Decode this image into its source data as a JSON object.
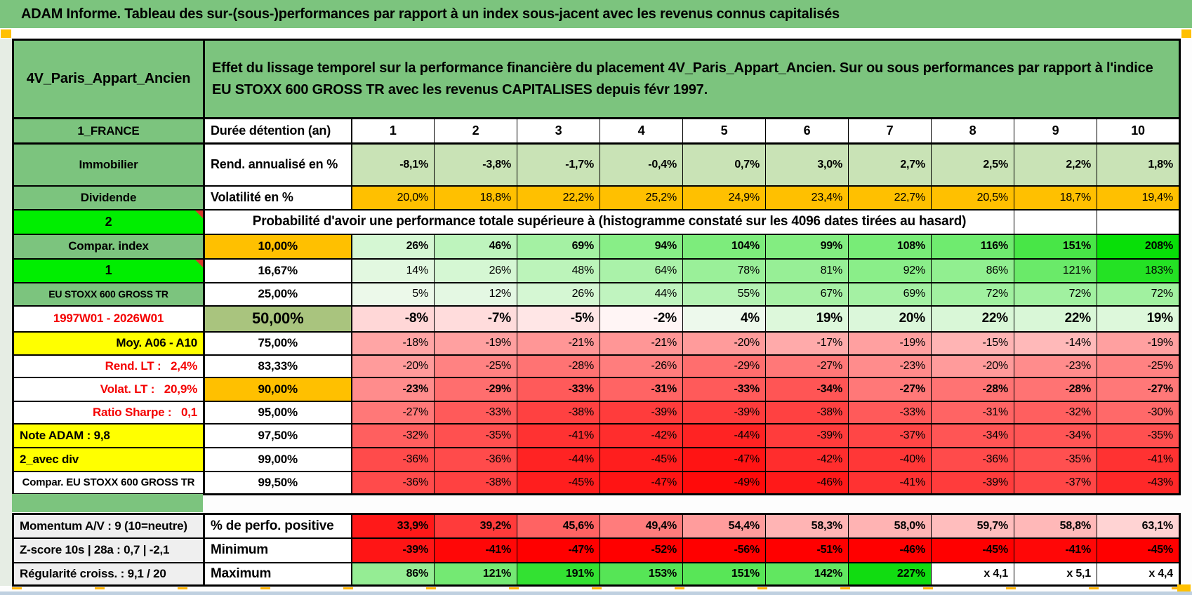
{
  "title": "ADAM Informe. Tableau des sur-(sous-)performances par rapport à un index sous-jacent avec les revenus connus capitalisés",
  "header": {
    "placement": "4V_Paris_Appart_Ancien",
    "description": "Effet du lissage temporel sur la performance financière du placement 4V_Paris_Appart_Ancien. Sur ou sous performances par rapport à l'indice EU STOXX 600 GROSS TR avec les revenus CAPITALISES depuis févr 1997."
  },
  "probability_note": "Probabilité d'avoir une performance totale supérieure à (histogramme constaté sur les 4096 dates tirées au hasard)",
  "main_rows": [
    {
      "label": "1_FRANCE",
      "label_style": "green",
      "sub": "Durée détention (an)",
      "sub_style": "left",
      "type": "years",
      "values": [
        "1",
        "2",
        "3",
        "4",
        "5",
        "6",
        "7",
        "8",
        "9",
        "10"
      ]
    },
    {
      "label": "Immobilier",
      "label_style": "green",
      "sub": "Rend. annualisé en %",
      "sub_style": "left",
      "type": "flat",
      "bg": "#C9E3B6",
      "bold": true,
      "values": [
        "-8,1%",
        "-3,8%",
        "-1,7%",
        "-0,4%",
        "0,7%",
        "3,0%",
        "2,7%",
        "2,5%",
        "2,2%",
        "1,8%"
      ]
    },
    {
      "label": "Dividende",
      "label_style": "green",
      "sub": "Volatilité en %",
      "sub_style": "left",
      "type": "flat",
      "bg": "#FFC000",
      "bold": false,
      "values": [
        "20,0%",
        "18,8%",
        "22,2%",
        "25,2%",
        "24,9%",
        "23,4%",
        "22,7%",
        "20,5%",
        "18,7%",
        "19,4%"
      ]
    },
    {
      "label": "2",
      "label_style": "bright",
      "type": "note"
    },
    {
      "label": "Compar. index",
      "label_style": "green",
      "sub": "10,00%",
      "sub_style": "orange",
      "type": "heat",
      "bold": true,
      "values": [
        "26%",
        "46%",
        "69%",
        "94%",
        "104%",
        "99%",
        "108%",
        "116%",
        "151%",
        "208%"
      ]
    },
    {
      "label": "1",
      "label_style": "bright",
      "sub": "16,67%",
      "type": "heat",
      "bold": false,
      "values": [
        "14%",
        "26%",
        "48%",
        "64%",
        "78%",
        "81%",
        "92%",
        "86%",
        "121%",
        "183%"
      ]
    },
    {
      "label": "EU STOXX 600 GROSS TR",
      "label_style": "green-small",
      "sub": "25,00%",
      "type": "heat",
      "bold": false,
      "values": [
        "5%",
        "12%",
        "26%",
        "44%",
        "55%",
        "67%",
        "69%",
        "72%",
        "72%",
        "72%"
      ]
    },
    {
      "label": "1997W01 - 2026W01",
      "label_style": "red",
      "sub": "50,00%",
      "sub_style": "olive",
      "type": "heat",
      "bold": true,
      "big": true,
      "values": [
        "-8%",
        "-7%",
        "-5%",
        "-2%",
        "4%",
        "19%",
        "20%",
        "22%",
        "22%",
        "19%"
      ]
    },
    {
      "label": "Moy. A06 - A10",
      "label_style": "yellow-right",
      "sub": "75,00%",
      "type": "heat",
      "bold": false,
      "values": [
        "-18%",
        "-19%",
        "-21%",
        "-21%",
        "-20%",
        "-17%",
        "-19%",
        "-15%",
        "-14%",
        "-19%"
      ]
    },
    {
      "label": "Rend. LT :   2,4%",
      "label_style": "red-right",
      "sub": "83,33%",
      "type": "heat",
      "bold": false,
      "values": [
        "-20%",
        "-25%",
        "-28%",
        "-26%",
        "-29%",
        "-27%",
        "-23%",
        "-20%",
        "-23%",
        "-25%"
      ]
    },
    {
      "label": "Volat. LT :   20,9%",
      "label_style": "red-right",
      "sub": "90,00%",
      "sub_style": "orange",
      "type": "heat",
      "bold": true,
      "values": [
        "-23%",
        "-29%",
        "-33%",
        "-31%",
        "-33%",
        "-34%",
        "-27%",
        "-28%",
        "-28%",
        "-27%"
      ]
    },
    {
      "label": "Ratio Sharpe :   0,1",
      "label_style": "red-right",
      "sub": "95,00%",
      "type": "heat",
      "bold": false,
      "values": [
        "-27%",
        "-33%",
        "-38%",
        "-39%",
        "-39%",
        "-38%",
        "-33%",
        "-31%",
        "-32%",
        "-30%"
      ]
    },
    {
      "label": "Note ADAM : 9,8",
      "label_style": "yellow-left",
      "sub": "97,50%",
      "type": "heat",
      "bold": false,
      "values": [
        "-32%",
        "-35%",
        "-41%",
        "-42%",
        "-44%",
        "-39%",
        "-37%",
        "-34%",
        "-34%",
        "-35%"
      ]
    },
    {
      "label": "2_avec div",
      "label_style": "yellow-left",
      "sub": "99,00%",
      "type": "heat",
      "bold": false,
      "values": [
        "-36%",
        "-36%",
        "-44%",
        "-45%",
        "-47%",
        "-42%",
        "-40%",
        "-36%",
        "-35%",
        "-41%"
      ]
    },
    {
      "label": "Compar. EU STOXX 600 GROSS TR",
      "label_style": "white-small",
      "sub": "99,50%",
      "type": "heat",
      "bold": false,
      "values": [
        "-36%",
        "-38%",
        "-45%",
        "-47%",
        "-49%",
        "-46%",
        "-41%",
        "-39%",
        "-37%",
        "-43%"
      ]
    }
  ],
  "bottom_rows": [
    {
      "label": "Momentum A/V : 9 (10=neutre)",
      "sub": "% de perfo. positive",
      "type": "posred",
      "values": [
        "33,9%",
        "39,2%",
        "45,6%",
        "49,4%",
        "54,4%",
        "58,3%",
        "58,0%",
        "59,7%",
        "58,8%",
        "63,1%"
      ]
    },
    {
      "label": "Z-score 10s | 28a : 0,7 | -2,1",
      "sub": "Minimum",
      "type": "minred",
      "values": [
        "-39%",
        "-41%",
        "-47%",
        "-52%",
        "-56%",
        "-51%",
        "-46%",
        "-45%",
        "-41%",
        "-45%"
      ]
    },
    {
      "label": "Régularité croiss. : 9,1 / 20",
      "sub": "Maximum",
      "type": "maxgreen",
      "values": [
        "86%",
        "121%",
        "191%",
        "153%",
        "151%",
        "142%",
        "227%",
        "x 4,1",
        "x 5,1",
        "x 4,4"
      ]
    }
  ],
  "colors": {
    "header_green": "#7CC47E",
    "bright_green": "#00EE00",
    "orange": "#FFC000",
    "yellow": "#FFFF00",
    "olive": "#A9C47E",
    "rend_row_green": "#C9E3B6",
    "label_gray": "#EFEFEF",
    "red_text": "#F40000",
    "heat_red": "#FF0000",
    "heat_green": "#00E000",
    "marker_orange": "#FFC000",
    "edge_blue": "#BFD0E0"
  }
}
